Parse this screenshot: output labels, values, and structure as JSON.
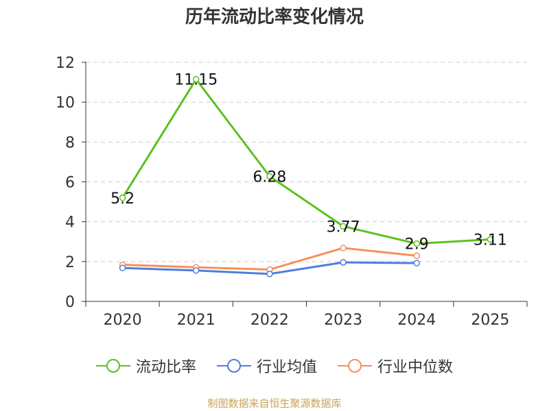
{
  "title": "历年流动比率变化情况",
  "source": "制图数据来自恒生聚源数据库",
  "colors": {
    "current_ratio": "#5cc022",
    "industry_avg": "#4f7de0",
    "industry_median": "#f5905a"
  },
  "chart_data": {
    "type": "line",
    "title": "历年流动比率变化情况",
    "categories": [
      "2020",
      "2021",
      "2022",
      "2023",
      "2024",
      "2025"
    ],
    "ylim": [
      0,
      12
    ],
    "yticks": [
      0,
      2,
      4,
      6,
      8,
      10,
      12
    ],
    "grid": true,
    "legend_position": "bottom",
    "series": [
      {
        "name": "流动比率",
        "values": [
          5.2,
          11.15,
          6.28,
          3.77,
          2.9,
          3.11
        ],
        "labels": [
          "5.2",
          "11.15",
          "6.28",
          "3.77",
          "2.9",
          "3.11"
        ]
      },
      {
        "name": "行业均值",
        "values": [
          1.68,
          1.55,
          1.38,
          1.96,
          1.92,
          null
        ]
      },
      {
        "name": "行业中位数",
        "values": [
          1.84,
          1.71,
          1.6,
          2.68,
          2.29,
          null
        ]
      }
    ]
  }
}
